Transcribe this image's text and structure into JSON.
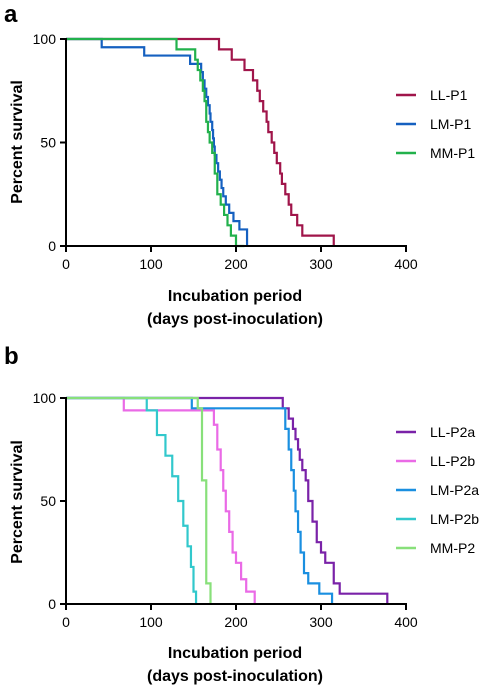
{
  "panels": [
    {
      "label": "a",
      "xlabel": "Incubation period",
      "xlabel2": "(days post-inoculation)",
      "ylabel": "Percent survival"
    },
    {
      "label": "b",
      "xlabel": "Incubation period",
      "xlabel2": "(days post-inoculation)",
      "ylabel": "Percent survival"
    }
  ],
  "chart_data": [
    {
      "type": "line",
      "step": true,
      "title": "",
      "panel_label": "a",
      "xlabel": "Incubation period (days post-inoculation)",
      "ylabel": "Percent survival",
      "xlim": [
        0,
        400
      ],
      "ylim": [
        0,
        100
      ],
      "xticks": [
        0,
        100,
        200,
        300,
        400
      ],
      "yticks": [
        0,
        50,
        100
      ],
      "legend_position": "right",
      "series": [
        {
          "name": "LL-P1",
          "color": "#a0154a",
          "x": [
            0,
            157,
            180,
            195,
            210,
            220,
            225,
            228,
            232,
            236,
            238,
            242,
            245,
            248,
            252,
            254,
            258,
            262,
            265,
            272,
            278,
            315
          ],
          "y": [
            100,
            100,
            95,
            90,
            85,
            80,
            75,
            70,
            65,
            60,
            55,
            50,
            45,
            40,
            35,
            30,
            25,
            20,
            15,
            10,
            5,
            0
          ]
        },
        {
          "name": "LM-P1",
          "color": "#1560c0",
          "x": [
            0,
            42,
            57,
            92,
            127,
            146,
            159,
            161,
            163,
            165,
            167,
            169,
            170,
            172,
            173,
            174,
            175,
            177,
            179,
            181,
            183,
            185,
            188,
            192,
            197,
            204,
            213
          ],
          "y": [
            100,
            96,
            96,
            92,
            92,
            88,
            84,
            80,
            76,
            72,
            68,
            64,
            60,
            56,
            52,
            48,
            44,
            40,
            36,
            32,
            28,
            24,
            20,
            16,
            12,
            8,
            0
          ]
        },
        {
          "name": "MM-P1",
          "color": "#22b14c",
          "x": [
            0,
            130,
            152,
            155,
            158,
            161,
            163,
            165,
            167,
            169,
            172,
            175,
            178,
            182,
            186,
            190,
            194,
            200,
            210
          ],
          "y": [
            100,
            95,
            90,
            85,
            80,
            75,
            70,
            60,
            55,
            50,
            45,
            35,
            25,
            20,
            15,
            10,
            5,
            0,
            0
          ]
        }
      ]
    },
    {
      "type": "line",
      "step": true,
      "title": "",
      "panel_label": "b",
      "xlabel": "Incubation period (days post-inoculation)",
      "ylabel": "Percent survival",
      "xlim": [
        0,
        400
      ],
      "ylim": [
        0,
        100
      ],
      "xticks": [
        0,
        100,
        200,
        300,
        400
      ],
      "yticks": [
        0,
        50,
        100
      ],
      "legend_position": "right",
      "series": [
        {
          "name": "LL-P2a",
          "color": "#7a22a8",
          "x": [
            0,
            255,
            262,
            267,
            270,
            273,
            275,
            278,
            282,
            285,
            290,
            295,
            300,
            305,
            315,
            322,
            378
          ],
          "y": [
            100,
            95,
            90,
            85,
            80,
            75,
            70,
            65,
            60,
            50,
            40,
            30,
            25,
            20,
            10,
            5,
            0
          ]
        },
        {
          "name": "LL-P2b",
          "color": "#ea6ae6",
          "x": [
            0,
            68,
            102,
            174,
            178,
            182,
            185,
            188,
            192,
            196,
            200,
            206,
            212,
            222
          ],
          "y": [
            100,
            94,
            94,
            87,
            75,
            65,
            55,
            45,
            35,
            25,
            20,
            12,
            6,
            0
          ]
        },
        {
          "name": "LM-P2a",
          "color": "#1a8fe0",
          "x": [
            0,
            148,
            258,
            262,
            265,
            268,
            270,
            273,
            276,
            280,
            285,
            298,
            313
          ],
          "y": [
            100,
            95,
            85,
            75,
            65,
            55,
            45,
            35,
            25,
            15,
            10,
            5,
            0
          ]
        },
        {
          "name": "LM-P2b",
          "color": "#32c8cc",
          "x": [
            0,
            95,
            107,
            117,
            125,
            132,
            138,
            143,
            147,
            150,
            153
          ],
          "y": [
            100,
            94,
            82,
            72,
            62,
            50,
            38,
            28,
            18,
            6,
            0
          ]
        },
        {
          "name": "MM-P2",
          "color": "#88e07a",
          "x": [
            0,
            155,
            160,
            165,
            170
          ],
          "y": [
            100,
            95,
            60,
            10,
            0
          ]
        }
      ]
    }
  ]
}
